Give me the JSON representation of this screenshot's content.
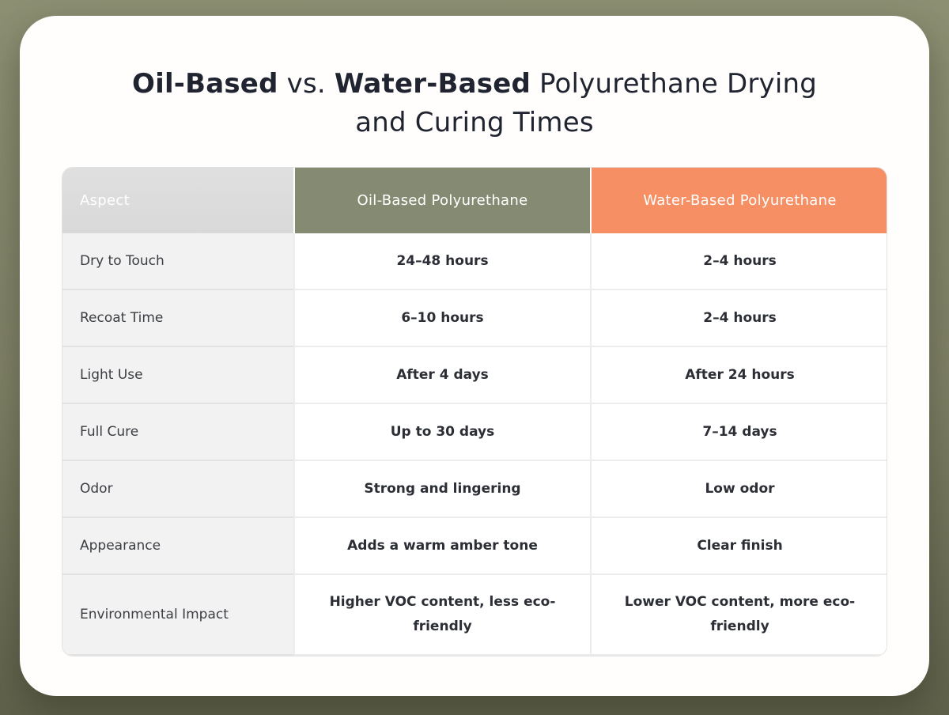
{
  "title": {
    "bold1": "Oil-Based",
    "separator": " vs. ",
    "bold2": "Water-Based",
    "rest_line1": " Polyurethane Drying",
    "line2": "and Curing Times"
  },
  "colors": {
    "bg-top": "#8d8f73",
    "bg-mid": "#7e8065",
    "bg-bottom": "#5f614a",
    "card-bg": "#fffefc",
    "title-color": "#1f2430",
    "header-aspect-bg": "#d9d9d9",
    "header-oil-bg": "#858b73",
    "header-water-bg": "#f78f64",
    "aspect-col-bg": "#f2f2f2"
  },
  "table": {
    "columns": [
      {
        "label": "Aspect"
      },
      {
        "label": "Oil-Based Polyurethane"
      },
      {
        "label": "Water-Based Polyurethane"
      }
    ],
    "rows": [
      {
        "aspect": "Dry to Touch",
        "oil": "24–48 hours",
        "water": "2–4 hours"
      },
      {
        "aspect": "Recoat Time",
        "oil": "6–10 hours",
        "water": "2–4 hours"
      },
      {
        "aspect": "Light Use",
        "oil": "After 4 days",
        "water": "After 24 hours"
      },
      {
        "aspect": "Full Cure",
        "oil": "Up to 30 days",
        "water": "7–14 days"
      },
      {
        "aspect": "Odor",
        "oil": "Strong and lingering",
        "water": "Low odor"
      },
      {
        "aspect": "Appearance",
        "oil": "Adds a warm amber tone",
        "water": "Clear finish"
      },
      {
        "aspect": "Environmental Impact",
        "oil": "Higher VOC content, less eco-friendly",
        "water": "Lower VOC content, more eco-friendly"
      }
    ]
  },
  "chart_data": {
    "type": "table",
    "title": "Oil-Based vs. Water-Based Polyurethane Drying and Curing Times",
    "columns": [
      "Aspect",
      "Oil-Based Polyurethane",
      "Water-Based Polyurethane"
    ],
    "rows": [
      [
        "Dry to Touch",
        "24–48 hours",
        "2–4 hours"
      ],
      [
        "Recoat Time",
        "6–10 hours",
        "2–4 hours"
      ],
      [
        "Light Use",
        "After 4 days",
        "After 24 hours"
      ],
      [
        "Full Cure",
        "Up to 30 days",
        "7–14 days"
      ],
      [
        "Odor",
        "Strong and lingering",
        "Low odor"
      ],
      [
        "Appearance",
        "Adds a warm amber tone",
        "Clear finish"
      ],
      [
        "Environmental Impact",
        "Higher VOC content, less eco-friendly",
        "Lower VOC content, more eco-friendly"
      ]
    ],
    "legend_position": "none",
    "grid": true
  }
}
